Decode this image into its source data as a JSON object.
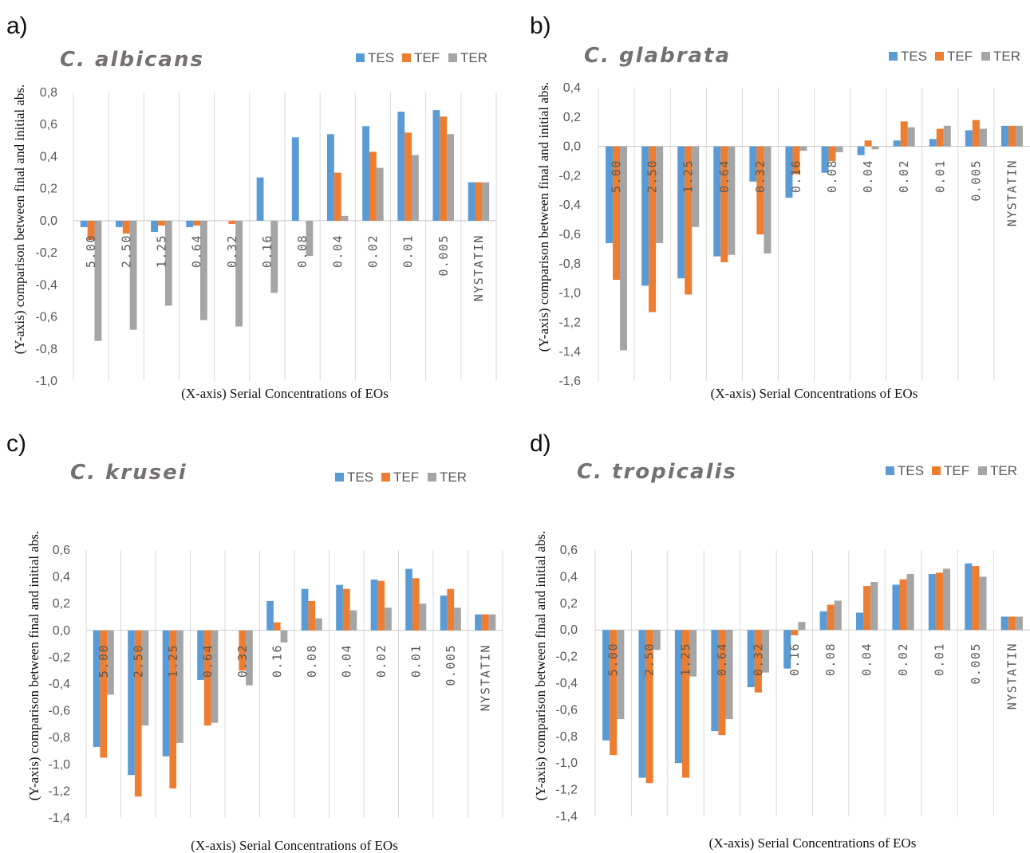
{
  "colors": {
    "TES": "#5B9BD5",
    "TEF": "#ED7D31",
    "TER": "#A5A5A5",
    "grid": "#d9d9d9",
    "zero": "#c8c8c8"
  },
  "chart_data": [
    {
      "panel": "a)",
      "type": "bar",
      "title": "C. albicans",
      "xlabel": "(X-axis) Serial Concentrations of EOs",
      "ylabel": "(Y-axis) comparison between final and initial abs.",
      "categories": [
        "5.00",
        "2.50",
        "1.25",
        "0.64",
        "0.32",
        "0.16",
        "0.08",
        "0.04",
        "0.02",
        "0.01",
        "0.005",
        "NYSTATIN"
      ],
      "ylim": [
        -1.0,
        0.8
      ],
      "yticks": [
        0.8,
        0.6,
        0.4,
        0.2,
        0.0,
        -0.2,
        -0.4,
        -0.6,
        -0.8,
        -1.0
      ],
      "ytick_labels": [
        "0,8",
        "0,6",
        "0,4",
        "0,2",
        "0,0",
        "-0,2",
        "-0,4",
        "-0,6",
        "-0,8",
        "-1,0"
      ],
      "legend": [
        "TES",
        "TEF",
        "TER"
      ],
      "legend_position": "top-right",
      "series": [
        {
          "name": "TES",
          "values": [
            -0.04,
            -0.04,
            -0.07,
            -0.04,
            0.0,
            0.27,
            0.52,
            0.54,
            0.59,
            0.68,
            0.69,
            0.24
          ]
        },
        {
          "name": "TEF",
          "values": [
            -0.12,
            -0.08,
            -0.03,
            -0.03,
            -0.02,
            0.0,
            0.0,
            0.3,
            0.43,
            0.55,
            0.65,
            0.24
          ]
        },
        {
          "name": "TER",
          "values": [
            -0.75,
            -0.68,
            -0.53,
            -0.62,
            -0.66,
            -0.45,
            -0.22,
            0.03,
            0.33,
            0.41,
            0.54,
            0.24
          ]
        }
      ]
    },
    {
      "panel": "b)",
      "type": "bar",
      "title": "C. glabrata",
      "xlabel": "(X-axis) Serial Concentrations of EOs",
      "ylabel": "(Y-axis) comparison between final and initial abs.",
      "categories": [
        "5.00",
        "2.50",
        "1.25",
        "0.64",
        "0.32",
        "0.16",
        "0.08",
        "0.04",
        "0.02",
        "0.01",
        "0.005",
        "NYSTATIN"
      ],
      "ylim": [
        -1.6,
        0.4
      ],
      "yticks": [
        0.4,
        0.2,
        0.0,
        -0.2,
        -0.4,
        -0.6,
        -0.8,
        -1.0,
        -1.2,
        -1.4,
        -1.6
      ],
      "ytick_labels": [
        "0,4",
        "0,2",
        "0,0",
        "-0,2",
        "-0,4",
        "-0,6",
        "-0,8",
        "-1,0",
        "-1,2",
        "-1,4",
        "-1,6"
      ],
      "legend": [
        "TES",
        "TEF",
        "TER"
      ],
      "legend_position": "top-right",
      "series": [
        {
          "name": "TES",
          "values": [
            -0.66,
            -0.95,
            -0.9,
            -0.75,
            -0.24,
            -0.35,
            -0.18,
            -0.06,
            0.04,
            0.05,
            0.11,
            0.14
          ]
        },
        {
          "name": "TEF",
          "values": [
            -0.91,
            -1.13,
            -1.01,
            -0.79,
            -0.6,
            -0.19,
            -0.1,
            0.04,
            0.17,
            0.12,
            0.18,
            0.14
          ]
        },
        {
          "name": "TER",
          "values": [
            -1.39,
            -0.66,
            -0.55,
            -0.74,
            -0.73,
            -0.03,
            -0.04,
            -0.02,
            0.13,
            0.14,
            0.12,
            0.14
          ]
        }
      ]
    },
    {
      "panel": "c)",
      "type": "bar",
      "title": "C. krusei",
      "xlabel": "(X-axis) Serial Concentrations of EOs",
      "ylabel": "(Y-axis) comparison between final and initial abs.",
      "categories": [
        "5.00",
        "2.50",
        "1.25",
        "0.64",
        "0.32",
        "0.16",
        "0.08",
        "0.04",
        "0.02",
        "0.01",
        "0.005",
        "NYSTATIN"
      ],
      "ylim": [
        -1.4,
        0.6
      ],
      "yticks": [
        0.6,
        0.4,
        0.2,
        0.0,
        -0.2,
        -0.4,
        -0.6,
        -0.8,
        -1.0,
        -1.2,
        -1.4
      ],
      "ytick_labels": [
        "0,6",
        "0,4",
        "0,2",
        "0,0",
        "-0,2",
        "-0,4",
        "-0,6",
        "-0,8",
        "-1,0",
        "-1,2",
        "-1,4"
      ],
      "legend": [
        "TES",
        "TEF",
        "TER"
      ],
      "legend_position": "top-right",
      "series": [
        {
          "name": "TES",
          "values": [
            -0.87,
            -1.08,
            -0.94,
            -0.37,
            0.0,
            0.22,
            0.31,
            0.34,
            0.38,
            0.46,
            0.26,
            0.12
          ]
        },
        {
          "name": "TEF",
          "values": [
            -0.95,
            -1.24,
            -1.18,
            -0.71,
            -0.3,
            0.06,
            0.22,
            0.31,
            0.37,
            0.39,
            0.31,
            0.12
          ]
        },
        {
          "name": "TER",
          "values": [
            -0.48,
            -0.71,
            -0.84,
            -0.69,
            -0.41,
            -0.09,
            0.09,
            0.15,
            0.17,
            0.2,
            0.17,
            0.12
          ]
        }
      ]
    },
    {
      "panel": "d)",
      "type": "bar",
      "title": "C. tropicalis",
      "xlabel": "(X-axis) Serial Concentrations of EOs",
      "ylabel": "(Y-axis) comparison between final and initial abs.",
      "categories": [
        "5.00",
        "2.50",
        "1.25",
        "0.64",
        "0.32",
        "0.16",
        "0.08",
        "0.04",
        "0.02",
        "0.01",
        "0.005",
        "NYSTATIN"
      ],
      "ylim": [
        -1.4,
        0.6
      ],
      "yticks": [
        0.6,
        0.4,
        0.2,
        0.0,
        -0.2,
        -0.4,
        -0.6,
        -0.8,
        -1.0,
        -1.2,
        -1.4
      ],
      "ytick_labels": [
        "0,6",
        "0,4",
        "0,2",
        "0,0",
        "-0,2",
        "-0,4",
        "-0,6",
        "-0,8",
        "-1,0",
        "-1,2",
        "-1,4"
      ],
      "legend": [
        "TES",
        "TEF",
        "TER"
      ],
      "legend_position": "top-right",
      "series": [
        {
          "name": "TES",
          "values": [
            -0.83,
            -1.11,
            -1.0,
            -0.76,
            -0.43,
            -0.29,
            0.14,
            0.13,
            0.34,
            0.42,
            0.5,
            0.1
          ]
        },
        {
          "name": "TEF",
          "values": [
            -0.94,
            -1.15,
            -1.11,
            -0.79,
            -0.47,
            -0.04,
            0.19,
            0.33,
            0.38,
            0.43,
            0.48,
            0.1
          ]
        },
        {
          "name": "TER",
          "values": [
            -0.67,
            -0.15,
            -0.35,
            -0.67,
            -0.32,
            0.06,
            0.22,
            0.36,
            0.42,
            0.46,
            0.4,
            0.1
          ]
        }
      ]
    }
  ]
}
